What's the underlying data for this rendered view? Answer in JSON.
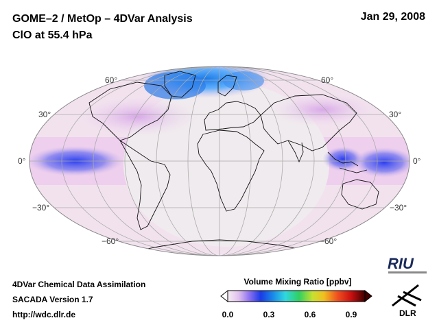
{
  "header": {
    "title_line1": "GOME–2 / MetOp – 4DVar Analysis",
    "title_line2": "ClO at 55.4 hPa",
    "date": "Jan 29, 2008"
  },
  "map": {
    "projection": "Mollweide",
    "lat_labels": {
      "n60": "60°",
      "n30": "30°",
      "eq": "0°",
      "s30": "−30°",
      "s60": "−60°"
    }
  },
  "footer": {
    "line1": "4DVar Chemical Data Assimilation",
    "line2": "SACADA Version 1.7",
    "line3": "http://wdc.dlr.de"
  },
  "colorbar": {
    "title": "Volume Mixing Ratio [ppbv]",
    "ticks": [
      "0.0",
      "0.3",
      "0.6",
      "0.9"
    ],
    "tick_values": [
      0.0,
      0.3,
      0.6,
      0.9
    ],
    "range": [
      0.0,
      1.0
    ]
  },
  "logos": {
    "riu": "RIU",
    "dlr": "DLR"
  },
  "colors": {
    "background_field": "#f3e0ec",
    "low": "#f0e9ee",
    "high_blue": "#1a3ee0"
  }
}
